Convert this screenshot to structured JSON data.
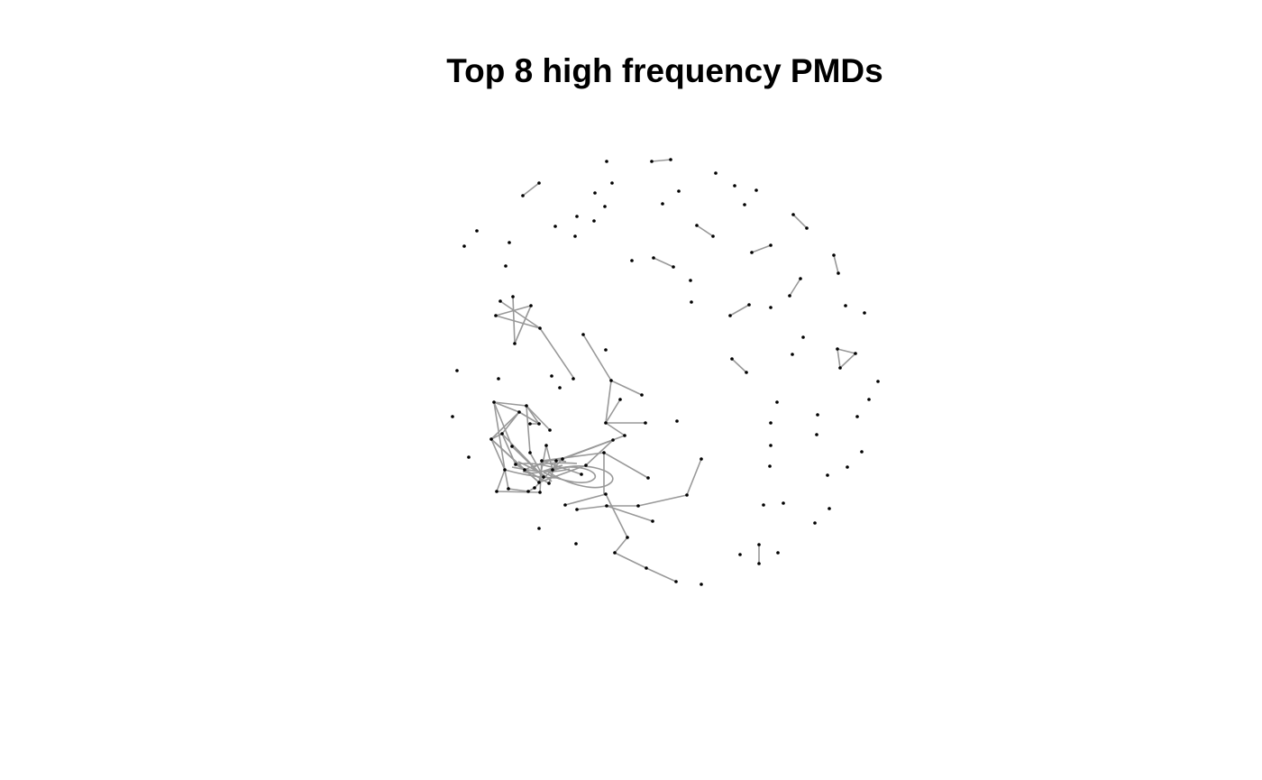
{
  "title": "Top 8 high frequency PMDs",
  "colors": {
    "background": "#ffffff",
    "node": "#000000",
    "edge": "#999999",
    "title": "#000000"
  }
}
